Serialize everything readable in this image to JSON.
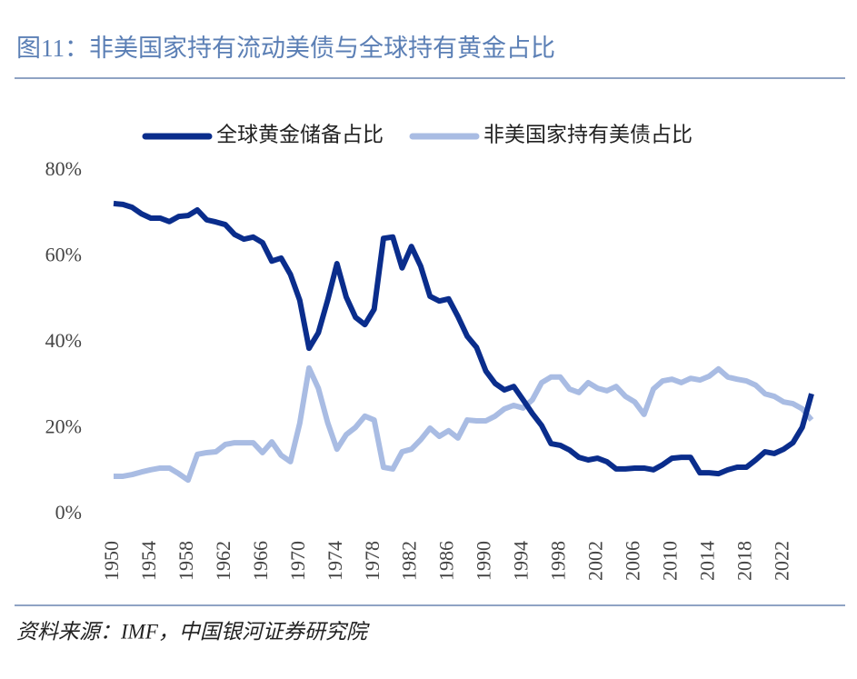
{
  "chart_data": {
    "type": "line",
    "title": "图11：非美国家持有流动美债与全球持有黄金占比",
    "source": "资料来源：IMF，中国银河证券研究院",
    "x": [
      1950,
      1951,
      1952,
      1953,
      1954,
      1955,
      1956,
      1957,
      1958,
      1959,
      1960,
      1961,
      1962,
      1963,
      1964,
      1965,
      1966,
      1967,
      1968,
      1969,
      1970,
      1971,
      1972,
      1973,
      1974,
      1975,
      1976,
      1977,
      1978,
      1979,
      1980,
      1981,
      1982,
      1983,
      1984,
      1985,
      1986,
      1987,
      1988,
      1989,
      1990,
      1991,
      1992,
      1993,
      1994,
      1995,
      1996,
      1997,
      1998,
      1999,
      2000,
      2001,
      2002,
      2003,
      2004,
      2005,
      2006,
      2007,
      2008,
      2009,
      2010,
      2011,
      2012,
      2013,
      2014,
      2015,
      2016,
      2017,
      2018,
      2019,
      2020,
      2021,
      2022,
      2023,
      2024,
      2025
    ],
    "xlim": [
      1950,
      2025
    ],
    "xticks": [
      1950,
      1954,
      1958,
      1962,
      1966,
      1970,
      1974,
      1978,
      1982,
      1986,
      1990,
      1994,
      1998,
      2002,
      2006,
      2010,
      2014,
      2018,
      2022
    ],
    "ylim": [
      0,
      80
    ],
    "yticks": [
      {
        "value": 0,
        "label": "0%"
      },
      {
        "value": 20,
        "label": "20%"
      },
      {
        "value": 40,
        "label": "40%"
      },
      {
        "value": 60,
        "label": "60%"
      },
      {
        "value": 80,
        "label": "80%"
      }
    ],
    "legend": "top",
    "series": [
      {
        "name": "全球黄金储备占比",
        "color": "#0a2d8c",
        "values": [
          72.4,
          72.2,
          71.5,
          70,
          69,
          69,
          68.2,
          69.4,
          69.6,
          70.9,
          68.6,
          68.1,
          67.5,
          65.2,
          64.1,
          64.6,
          63.3,
          59,
          59.7,
          55.9,
          49.9,
          38.7,
          42.3,
          49.9,
          58.4,
          50.6,
          45.9,
          44.2,
          47.8,
          64.3,
          64.6,
          57.4,
          62.4,
          57.8,
          50.8,
          49.7,
          50.2,
          46.1,
          41.5,
          38.9,
          33.4,
          30.5,
          29,
          29.8,
          26.7,
          23.5,
          20.7,
          16.5,
          16.1,
          15,
          13.3,
          12.7,
          13.1,
          12.3,
          10.6,
          10.6,
          10.8,
          10.8,
          10.4,
          11.6,
          13.1,
          13.3,
          13.3,
          9.7,
          9.7,
          9.5,
          10.4,
          11,
          11,
          12.7,
          14.6,
          14.2,
          15.2,
          16.7,
          20.3,
          28.1
        ]
      },
      {
        "name": "非美国家持有美债占比",
        "color": "#a9bce3",
        "values": [
          8.9,
          8.9,
          9.3,
          9.9,
          10.4,
          10.8,
          10.8,
          9.5,
          8,
          14,
          14.4,
          14.6,
          16.3,
          16.7,
          16.7,
          16.7,
          14.4,
          16.9,
          13.8,
          12.3,
          21.2,
          34.1,
          29.4,
          21.4,
          15.2,
          18.6,
          20.3,
          22.9,
          22,
          11,
          10.6,
          14.6,
          15.2,
          17.4,
          20.1,
          18.2,
          19.5,
          17.8,
          22,
          21.8,
          21.8,
          22.9,
          24.6,
          25.4,
          24.8,
          26.7,
          30.7,
          32,
          32,
          29.2,
          28.4,
          30.7,
          29.4,
          28.8,
          29.8,
          27.5,
          26.2,
          23.3,
          29.2,
          31.1,
          31.5,
          30.7,
          31.7,
          31.3,
          32.2,
          33.9,
          32,
          31.5,
          31.1,
          30.1,
          28.1,
          27.5,
          26.2,
          25.8,
          24.6,
          22
        ]
      }
    ]
  }
}
